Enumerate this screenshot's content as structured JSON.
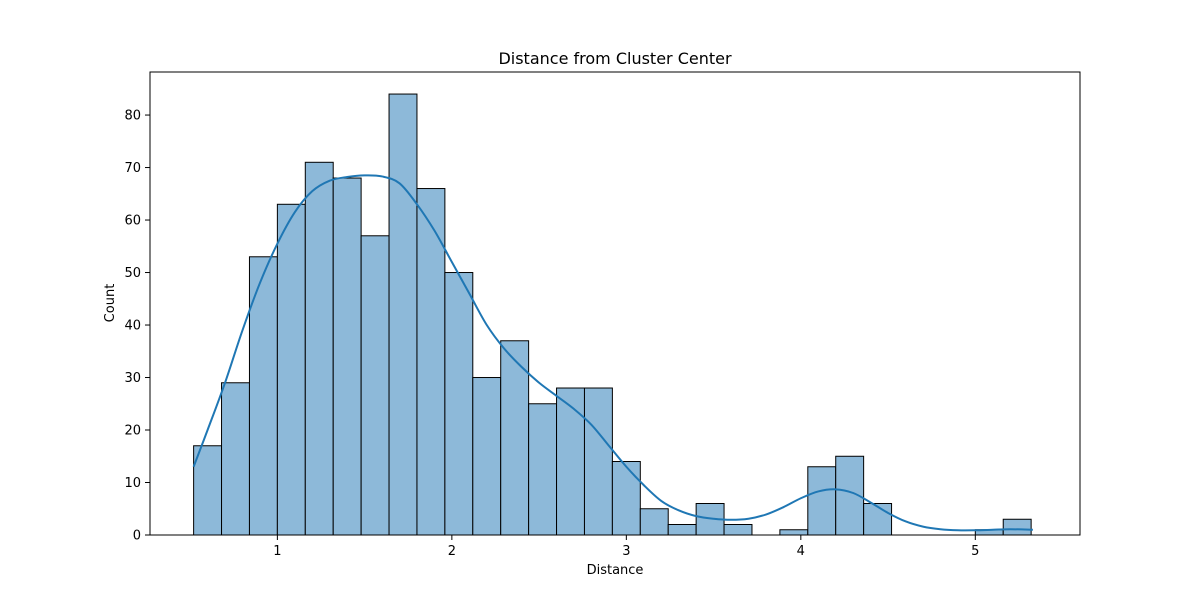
{
  "chart_data": {
    "type": "bar",
    "title": "Distance from Cluster Center",
    "xlabel": "Distance",
    "ylabel": "Count",
    "xlim": [
      0.27,
      5.6
    ],
    "ylim": [
      0,
      88.2
    ],
    "x_ticks": [
      1,
      2,
      3,
      4,
      5
    ],
    "y_ticks": [
      0,
      10,
      20,
      30,
      40,
      50,
      60,
      70,
      80
    ],
    "bin_start": 0.52,
    "bin_width": 0.16,
    "counts": [
      17,
      29,
      53,
      63,
      71,
      68,
      57,
      84,
      66,
      50,
      30,
      37,
      25,
      28,
      28,
      14,
      5,
      2,
      6,
      2,
      0,
      1,
      13,
      15,
      6,
      0,
      0,
      0,
      1,
      3
    ],
    "kde": {
      "x": [
        0.52,
        0.6,
        0.7,
        0.8,
        0.9,
        1.0,
        1.1,
        1.2,
        1.3,
        1.4,
        1.5,
        1.6,
        1.7,
        1.8,
        1.9,
        2.0,
        2.1,
        2.2,
        2.3,
        2.4,
        2.5,
        2.6,
        2.7,
        2.8,
        2.9,
        3.0,
        3.1,
        3.2,
        3.3,
        3.4,
        3.5,
        3.6,
        3.7,
        3.8,
        3.9,
        4.0,
        4.1,
        4.2,
        4.3,
        4.4,
        4.5,
        4.6,
        4.7,
        4.8,
        4.9,
        5.0,
        5.1,
        5.2,
        5.33
      ],
      "y": [
        13,
        20,
        29,
        39,
        48,
        55.5,
        61.5,
        65.5,
        67.5,
        68.2,
        68.5,
        68.3,
        67,
        63,
        58,
        52,
        46,
        40,
        35.5,
        32,
        29,
        26.5,
        24,
        21,
        17,
        13,
        9.5,
        6.5,
        4.7,
        3.6,
        3.1,
        2.9,
        3.1,
        3.9,
        5.3,
        7,
        8.3,
        8.7,
        8,
        6.2,
        4.2,
        2.6,
        1.6,
        1.1,
        0.9,
        0.9,
        1.0,
        1.1,
        1.0
      ]
    },
    "bar_color": "#8db9d9",
    "line_color": "#1f77b4",
    "grid": false
  }
}
